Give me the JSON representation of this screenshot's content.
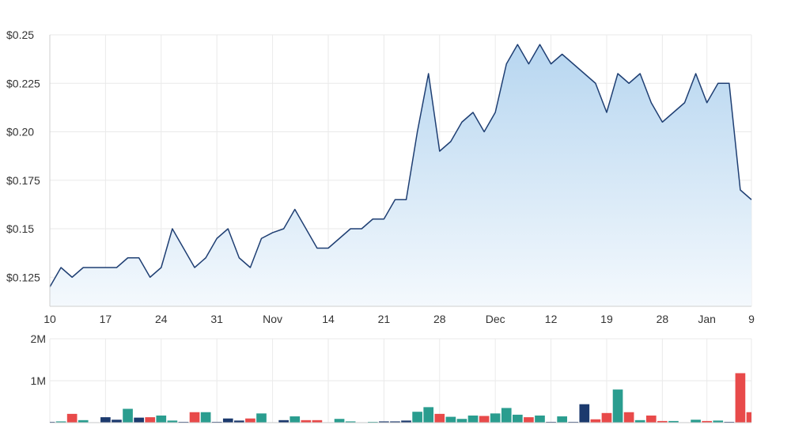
{
  "colors": {
    "line": "#1f3f73",
    "area_top": "#b7d6f0",
    "area_bottom": "#f4f9fd",
    "grid": "#eaeaea",
    "axis": "#cfcfcf",
    "label": "#333333",
    "vol_up": "#2a9d8f",
    "vol_down": "#e84a4a",
    "vol_neutral": "#1c3a6e"
  },
  "chart_data": [
    {
      "type": "area",
      "title": "",
      "xlabel": "",
      "ylabel": "",
      "ylim": [
        0.11,
        0.25
      ],
      "y_ticks": [
        0.125,
        0.15,
        0.175,
        0.2,
        0.225,
        0.25
      ],
      "y_tick_labels": [
        "$0.125",
        "$0.15",
        "$0.175",
        "$0.20",
        "$0.225",
        "$0.25"
      ],
      "x_tick_labels": [
        {
          "index": 0,
          "label": "10"
        },
        {
          "index": 5,
          "label": "17"
        },
        {
          "index": 10,
          "label": "24"
        },
        {
          "index": 15,
          "label": "31"
        },
        {
          "index": 20,
          "label": "Nov"
        },
        {
          "index": 25,
          "label": "14"
        },
        {
          "index": 30,
          "label": "21"
        },
        {
          "index": 35,
          "label": "28"
        },
        {
          "index": 40,
          "label": "Dec"
        },
        {
          "index": 45,
          "label": "12"
        },
        {
          "index": 50,
          "label": "19"
        },
        {
          "index": 55,
          "label": "28"
        },
        {
          "index": 59,
          "label": "Jan"
        },
        {
          "index": 63,
          "label": "9"
        }
      ],
      "grid": true,
      "values": [
        0.12,
        0.13,
        0.125,
        0.13,
        0.13,
        0.13,
        0.13,
        0.135,
        0.135,
        0.125,
        0.13,
        0.15,
        0.14,
        0.13,
        0.135,
        0.145,
        0.15,
        0.135,
        0.13,
        0.145,
        0.148,
        0.15,
        0.16,
        0.15,
        0.14,
        0.14,
        0.145,
        0.15,
        0.15,
        0.155,
        0.155,
        0.165,
        0.165,
        0.2,
        0.23,
        0.19,
        0.195,
        0.205,
        0.21,
        0.2,
        0.21,
        0.235,
        0.245,
        0.235,
        0.245,
        0.235,
        0.24,
        0.235,
        0.23,
        0.225,
        0.21,
        0.23,
        0.225,
        0.23,
        0.215,
        0.205,
        0.21,
        0.215,
        0.23,
        0.215,
        0.225,
        0.225,
        0.17,
        0.165
      ]
    },
    {
      "type": "bar",
      "title": "",
      "ylim": [
        0,
        2000000
      ],
      "y_ticks": [
        1000000,
        2000000
      ],
      "y_tick_labels": [
        "1M",
        "2M"
      ],
      "grid": true,
      "values": [
        20000,
        30000,
        210000,
        60000,
        10000,
        130000,
        70000,
        330000,
        120000,
        130000,
        170000,
        50000,
        20000,
        250000,
        250000,
        20000,
        100000,
        50000,
        100000,
        220000,
        10000,
        60000,
        150000,
        60000,
        60000,
        10000,
        90000,
        30000,
        10000,
        20000,
        30000,
        30000,
        50000,
        260000,
        370000,
        210000,
        140000,
        90000,
        170000,
        160000,
        220000,
        350000,
        190000,
        130000,
        170000,
        20000,
        150000,
        20000,
        440000,
        80000,
        230000,
        790000,
        250000,
        60000,
        170000,
        40000,
        40000,
        10000,
        70000,
        40000,
        50000,
        20000,
        1180000,
        250000
      ],
      "colors_by_bar": [
        "neutral",
        "up",
        "down",
        "up",
        "neutral",
        "neutral",
        "neutral",
        "up",
        "neutral",
        "down",
        "up",
        "up",
        "neutral",
        "down",
        "up",
        "neutral",
        "neutral",
        "neutral",
        "down",
        "up",
        "neutral",
        "neutral",
        "up",
        "down",
        "down",
        "neutral",
        "up",
        "up",
        "neutral",
        "up",
        "neutral",
        "neutral",
        "neutral",
        "up",
        "up",
        "down",
        "up",
        "up",
        "up",
        "down",
        "up",
        "up",
        "up",
        "down",
        "up",
        "neutral",
        "up",
        "neutral",
        "neutral",
        "down",
        "down",
        "up",
        "down",
        "up",
        "down",
        "down",
        "up",
        "neutral",
        "up",
        "down",
        "up",
        "neutral",
        "down",
        "down"
      ]
    }
  ]
}
